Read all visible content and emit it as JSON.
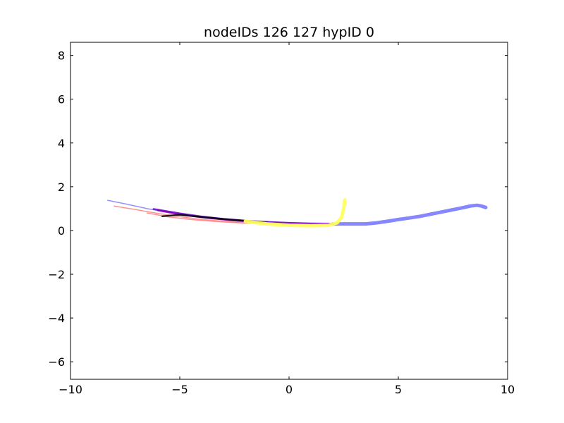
{
  "chart_data": {
    "type": "line",
    "title": "nodeIDs 126 127 hypID 0",
    "xlabel": "",
    "ylabel": "",
    "xlim": [
      -10,
      10
    ],
    "ylim": [
      -6.8,
      8.6
    ],
    "xticks": [
      -10,
      -5,
      0,
      5,
      10
    ],
    "yticks": [
      -6,
      -4,
      -2,
      0,
      2,
      4,
      6,
      8
    ],
    "xtick_labels": [
      "−10",
      "−5",
      "0",
      "5",
      "10"
    ],
    "ytick_labels": [
      "−6",
      "−4",
      "−2",
      "0",
      "2",
      "4",
      "6",
      "8"
    ],
    "grid": false,
    "legend": "none",
    "series": [
      {
        "color": "#8080ff",
        "weight": "thick",
        "x": [
          2.0,
          2.5,
          3.0,
          3.5,
          4.0,
          4.5,
          5.0,
          5.5,
          6.0,
          6.5,
          7.0,
          7.5,
          8.0,
          8.3,
          8.6,
          8.8,
          9.0
        ],
        "y": [
          0.3,
          0.3,
          0.3,
          0.3,
          0.35,
          0.42,
          0.5,
          0.57,
          0.65,
          0.75,
          0.85,
          0.95,
          1.05,
          1.12,
          1.15,
          1.12,
          1.05
        ]
      },
      {
        "color": "#8080ff",
        "weight": "thin",
        "x": [
          -8.3,
          -7.5,
          -6.5,
          -5.5,
          -4.5,
          -3.5,
          -2.5,
          -1.5,
          -0.5,
          0.5,
          1.5,
          2.0
        ],
        "y": [
          1.38,
          1.22,
          1.0,
          0.82,
          0.66,
          0.54,
          0.44,
          0.37,
          0.33,
          0.31,
          0.3,
          0.3
        ]
      },
      {
        "color": "#ff8080",
        "weight": "thin",
        "x": [
          -8.0,
          -7.0,
          -6.0,
          -5.0,
          -4.0,
          -3.0,
          -2.0,
          -1.0,
          0.0,
          1.0,
          1.8
        ],
        "y": [
          1.12,
          0.95,
          0.78,
          0.63,
          0.5,
          0.42,
          0.35,
          0.3,
          0.28,
          0.27,
          0.28
        ]
      },
      {
        "color": "#ff8080",
        "weight": "thin",
        "x": [
          -6.5,
          -5.5,
          -4.5,
          -3.5,
          -2.5,
          -1.5,
          -0.5,
          0.5,
          1.5
        ],
        "y": [
          0.8,
          0.62,
          0.5,
          0.42,
          0.36,
          0.32,
          0.3,
          0.29,
          0.29
        ]
      },
      {
        "color": "#b000b0",
        "weight": "medium",
        "x": [
          -6.0,
          -5.0,
          -4.0,
          -3.0,
          -2.0,
          -1.0,
          0.0,
          1.0,
          2.0
        ],
        "y": [
          0.92,
          0.74,
          0.6,
          0.5,
          0.42,
          0.36,
          0.32,
          0.3,
          0.3
        ]
      },
      {
        "color": "#6a00c8",
        "weight": "medium",
        "x": [
          -6.2,
          -5.0,
          -4.0,
          -3.0,
          -2.0,
          -1.0,
          0.0,
          1.0,
          2.0
        ],
        "y": [
          0.98,
          0.78,
          0.64,
          0.53,
          0.45,
          0.39,
          0.35,
          0.32,
          0.31
        ]
      },
      {
        "color": "#000000",
        "weight": "medium",
        "x": [
          -5.8,
          -5.0,
          -4.0,
          -3.0,
          -2.0,
          -1.0
        ],
        "y": [
          0.65,
          0.72,
          0.62,
          0.52,
          0.44,
          0.36
        ]
      },
      {
        "color": "#ffff60",
        "weight": "thick",
        "x": [
          -2.0,
          -1.0,
          0.0,
          1.0,
          1.8,
          2.2,
          2.4,
          2.5,
          2.55
        ],
        "y": [
          0.42,
          0.3,
          0.24,
          0.22,
          0.24,
          0.35,
          0.6,
          1.0,
          1.4
        ]
      }
    ]
  }
}
